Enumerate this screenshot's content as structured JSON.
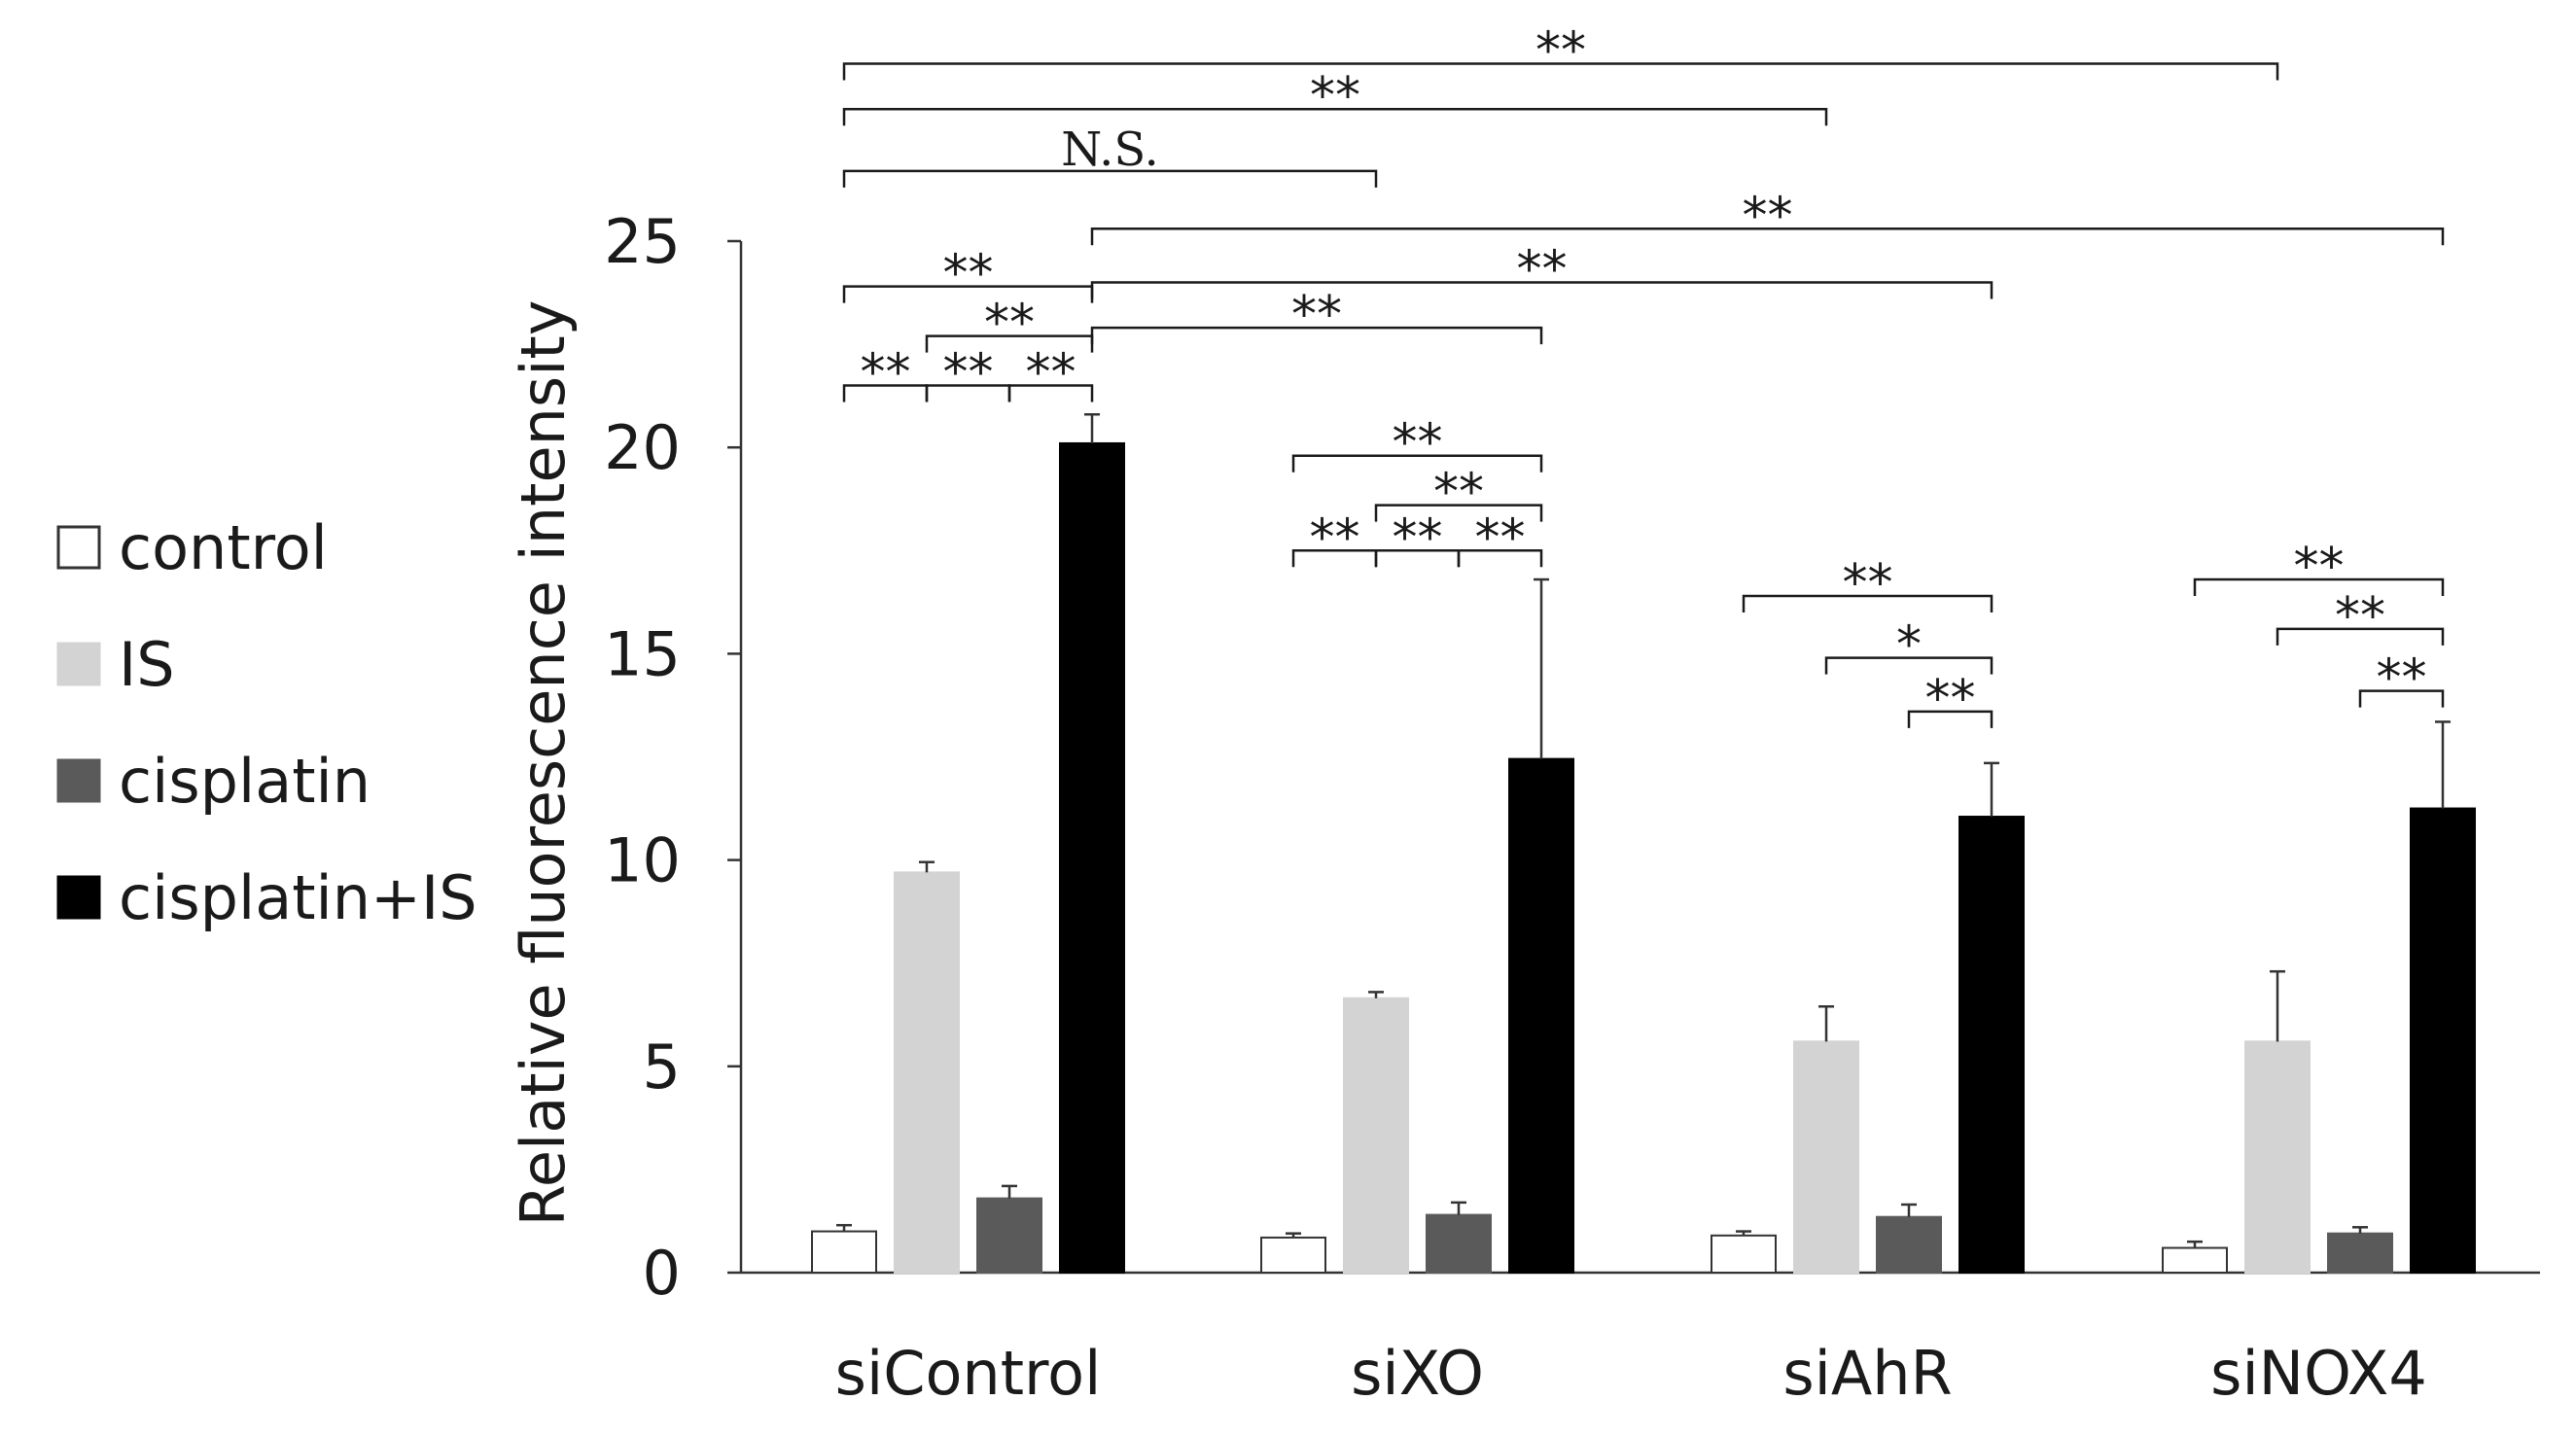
{
  "chart_data": {
    "type": "bar",
    "ylabel": "Relative fluorescence intensity",
    "xlabel": "",
    "ylim": [
      0,
      25
    ],
    "yticks": [
      0,
      5,
      10,
      15,
      20,
      25
    ],
    "ytick_labels": [
      "0",
      "5",
      "10",
      "15",
      "20",
      "25"
    ],
    "categories": [
      "siControl",
      "siXO",
      "siAhR",
      "siNOX4"
    ],
    "legend_position": "left",
    "series": [
      {
        "name": "control",
        "color": "#ffffff",
        "values": [
          1.0,
          0.85,
          0.9,
          0.6
        ],
        "errors": [
          0.15,
          0.1,
          0.1,
          0.15
        ]
      },
      {
        "name": "IS",
        "color": "#d3d3d3",
        "values": [
          9.7,
          6.65,
          5.6,
          5.6
        ],
        "errors": [
          0.25,
          0.15,
          0.85,
          1.7
        ]
      },
      {
        "name": "cisplatin",
        "color": "#5a5a5a",
        "values": [
          1.8,
          1.4,
          1.35,
          0.95
        ],
        "errors": [
          0.3,
          0.3,
          0.3,
          0.15
        ]
      },
      {
        "name": "cisplatin+IS",
        "color": "#000000",
        "values": [
          20.1,
          12.45,
          11.05,
          11.25
        ],
        "errors": [
          0.7,
          4.35,
          1.3,
          2.1
        ]
      }
    ],
    "significance": [
      {
        "text": "**",
        "from": {
          "group": 0,
          "series": 0
        },
        "to": {
          "group": 0,
          "series": 1
        },
        "level": 21.5
      },
      {
        "text": "**",
        "from": {
          "group": 0,
          "series": 1
        },
        "to": {
          "group": 0,
          "series": 2
        },
        "level": 21.5
      },
      {
        "text": "**",
        "from": {
          "group": 0,
          "series": 2
        },
        "to": {
          "group": 0,
          "series": 3
        },
        "level": 21.5
      },
      {
        "text": "**",
        "from": {
          "group": 0,
          "series": 1
        },
        "to": {
          "group": 0,
          "series": 3
        },
        "level": 22.7
      },
      {
        "text": "**",
        "from": {
          "group": 0,
          "series": 0
        },
        "to": {
          "group": 0,
          "series": 3
        },
        "level": 23.9
      },
      {
        "text": "**",
        "from": {
          "group": 0,
          "series": 3
        },
        "to": {
          "group": 1,
          "series": 3
        },
        "level": 22.9
      },
      {
        "text": "**",
        "from": {
          "group": 0,
          "series": 3
        },
        "to": {
          "group": 2,
          "series": 3
        },
        "level": 24.0
      },
      {
        "text": "**",
        "from": {
          "group": 0,
          "series": 3
        },
        "to": {
          "group": 3,
          "series": 3
        },
        "level": 25.3
      },
      {
        "text": "N.S.",
        "from": {
          "group": 0,
          "series": 0
        },
        "to": {
          "group": 1,
          "series": 1
        },
        "level": 26.7
      },
      {
        "text": "**",
        "from": {
          "group": 0,
          "series": 0
        },
        "to": {
          "group": 2,
          "series": 1
        },
        "level": 28.2
      },
      {
        "text": "**",
        "from": {
          "group": 0,
          "series": 0
        },
        "to": {
          "group": 3,
          "series": 1
        },
        "level": 29.3
      },
      {
        "text": "**",
        "from": {
          "group": 1,
          "series": 0
        },
        "to": {
          "group": 1,
          "series": 1
        },
        "level": 17.5
      },
      {
        "text": "**",
        "from": {
          "group": 1,
          "series": 1
        },
        "to": {
          "group": 1,
          "series": 2
        },
        "level": 17.5
      },
      {
        "text": "**",
        "from": {
          "group": 1,
          "series": 2
        },
        "to": {
          "group": 1,
          "series": 3
        },
        "level": 17.5
      },
      {
        "text": "**",
        "from": {
          "group": 1,
          "series": 1
        },
        "to": {
          "group": 1,
          "series": 3
        },
        "level": 18.6
      },
      {
        "text": "**",
        "from": {
          "group": 1,
          "series": 0
        },
        "to": {
          "group": 1,
          "series": 3
        },
        "level": 19.8
      },
      {
        "text": "**",
        "from": {
          "group": 2,
          "series": 2
        },
        "to": {
          "group": 2,
          "series": 3
        },
        "level": 13.6
      },
      {
        "text": "*",
        "from": {
          "group": 2,
          "series": 1
        },
        "to": {
          "group": 2,
          "series": 3
        },
        "level": 14.9
      },
      {
        "text": "**",
        "from": {
          "group": 2,
          "series": 0
        },
        "to": {
          "group": 2,
          "series": 3
        },
        "level": 16.4
      },
      {
        "text": "**",
        "from": {
          "group": 3,
          "series": 2
        },
        "to": {
          "group": 3,
          "series": 3
        },
        "level": 14.1
      },
      {
        "text": "**",
        "from": {
          "group": 3,
          "series": 1
        },
        "to": {
          "group": 3,
          "series": 3
        },
        "level": 15.6
      },
      {
        "text": "**",
        "from": {
          "group": 3,
          "series": 0
        },
        "to": {
          "group": 3,
          "series": 3
        },
        "level": 16.8
      }
    ]
  }
}
